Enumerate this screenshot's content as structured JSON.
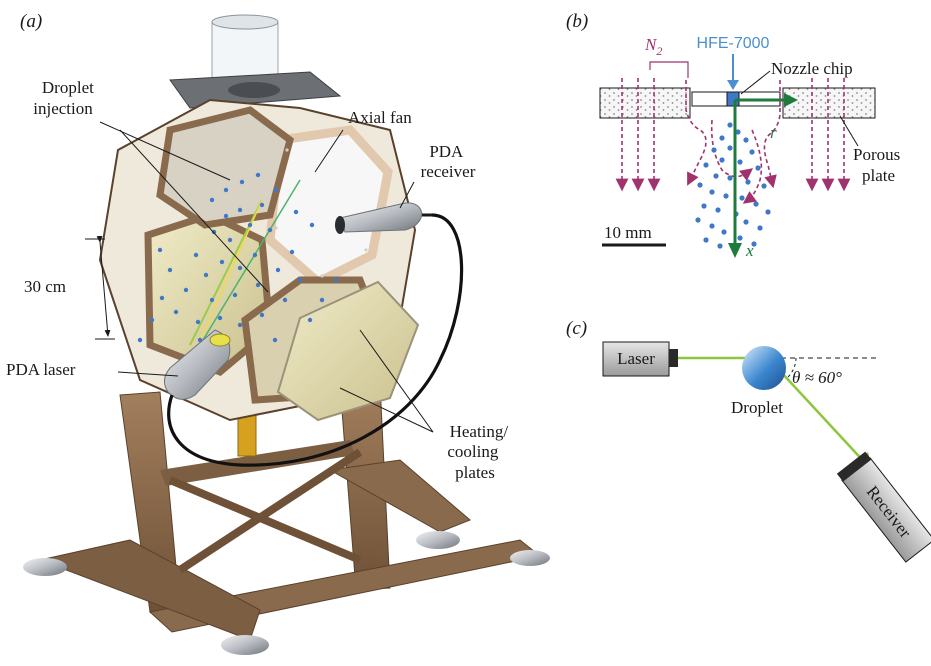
{
  "panel_a": {
    "tag": "(a)",
    "labels": {
      "droplet_injection": [
        "Droplet",
        "injection"
      ],
      "axial_fan": "Axial fan",
      "pda_receiver": [
        "PDA",
        "receiver"
      ],
      "scale": "30 cm",
      "pda_laser": "PDA laser",
      "heating_cooling": [
        "Heating/",
        "cooling",
        "plates"
      ]
    }
  },
  "panel_b": {
    "tag": "(b)",
    "gas_label": "N",
    "gas_sub": "2",
    "fluid_label": "HFE-7000",
    "nozzle_label": "Nozzle chip",
    "porous_label": [
      "Porous",
      "plate"
    ],
    "r_axis": "r",
    "x_axis": "x",
    "scale_label": "10 mm"
  },
  "panel_c": {
    "tag": "(c)",
    "laser_label": "Laser",
    "droplet_label": "Droplet",
    "receiver_label": "Receiver",
    "angle_label": "θ ≈ 60°"
  },
  "colors": {
    "frame": "#8a6a4c",
    "frame_light": "#e2c8ad",
    "panel_plate": "#e8e2bc",
    "droplet_blue": "#3f77c9",
    "gas_purple": "#a0326e",
    "fluid_blue": "#4a90d0",
    "axis_green": "#1f7a3e",
    "beam_green": "#8cc63e"
  }
}
